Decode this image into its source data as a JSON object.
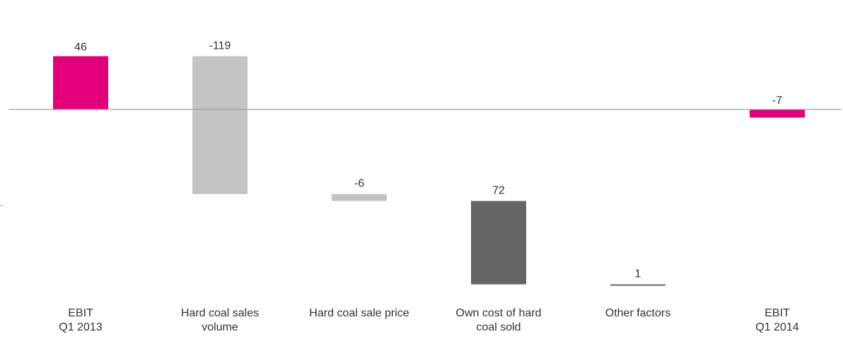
{
  "chart_data": {
    "type": "bar",
    "subtype": "waterfall",
    "title": "",
    "xlabel": "",
    "ylabel": "",
    "categories": [
      [
        "EBIT",
        "Q1 2013"
      ],
      [
        "Hard coal sales",
        "volume"
      ],
      [
        "Hard coal sale price"
      ],
      [
        "Own cost of hard",
        "coal sold"
      ],
      [
        "Other factors"
      ],
      [
        "EBIT",
        "Q1 2014"
      ]
    ],
    "values": [
      46,
      -119,
      -6,
      72,
      1,
      -7
    ],
    "value_labels": [
      "46",
      "-119",
      "-6",
      "72",
      "1",
      "-7"
    ],
    "bar_kinds": [
      "total",
      "delta",
      "delta",
      "delta",
      "delta",
      "total"
    ],
    "colors": {
      "total": "#e2007a",
      "negative_delta": "#c4c4c4",
      "positive_delta": "#666666",
      "small_delta": "#666666",
      "axis": "#a0a0a0",
      "text": "#333333"
    },
    "grid": false,
    "legend": "none"
  }
}
